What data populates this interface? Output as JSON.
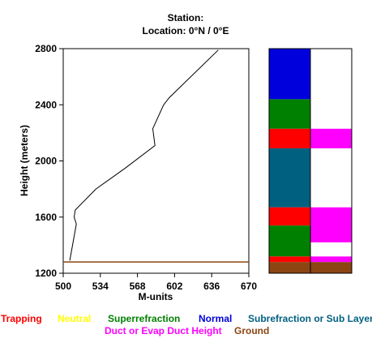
{
  "header": {
    "station_line": "Station:",
    "location_line": "Location:   0°N /   0°E"
  },
  "chart_data": {
    "type": "line",
    "xlabel": "M-units",
    "ylabel": "Height (meters)",
    "xlim": [
      500,
      670
    ],
    "ylim": [
      1200,
      2800
    ],
    "xticks": [
      "500",
      "534",
      "568",
      "602",
      "636",
      "670"
    ],
    "yticks": [
      "1200",
      "1600",
      "2000",
      "2400",
      "2800"
    ],
    "series": [
      {
        "points": [
          [
            506,
            1290
          ],
          [
            512,
            1550
          ],
          [
            510,
            1600
          ],
          [
            511,
            1650
          ],
          [
            530,
            1800
          ],
          [
            557,
            1950
          ],
          [
            584,
            2110
          ],
          [
            582,
            2230
          ],
          [
            592,
            2400
          ],
          [
            597,
            2450
          ],
          [
            642,
            2790
          ]
        ]
      }
    ],
    "ground_height": 1280,
    "layer_columns": {
      "left": [
        {
          "from": 1200,
          "to": 1280,
          "color": "#8B4513"
        },
        {
          "from": 1280,
          "to": 1320,
          "color": "#ff0000"
        },
        {
          "from": 1320,
          "to": 1540,
          "color": "#008000"
        },
        {
          "from": 1540,
          "to": 1670,
          "color": "#ff0000"
        },
        {
          "from": 1670,
          "to": 2090,
          "color": "#006080"
        },
        {
          "from": 2090,
          "to": 2230,
          "color": "#ff0000"
        },
        {
          "from": 2230,
          "to": 2440,
          "color": "#008000"
        },
        {
          "from": 2440,
          "to": 2800,
          "color": "#0000dd"
        }
      ],
      "right": [
        {
          "from": 1200,
          "to": 1280,
          "color": "#8B4513"
        },
        {
          "from": 1280,
          "to": 1320,
          "color": "#ff00ff"
        },
        {
          "from": 1320,
          "to": 1420,
          "color": "#ffffff"
        },
        {
          "from": 1420,
          "to": 1670,
          "color": "#ff00ff"
        },
        {
          "from": 1670,
          "to": 2090,
          "color": "#ffffff"
        },
        {
          "from": 2090,
          "to": 2230,
          "color": "#ff00ff"
        },
        {
          "from": 2230,
          "to": 2800,
          "color": "#ffffff"
        }
      ]
    }
  },
  "legend": {
    "row1": [
      {
        "label": "Trapping",
        "color": "#ff0000"
      },
      {
        "label": "Neutral",
        "color": "#ffff00"
      },
      {
        "label": "Superrefraction",
        "color": "#008000"
      },
      {
        "label": "Normal",
        "color": "#0000dd"
      },
      {
        "label": "Subrefraction or Sub Layer",
        "color": "#006080"
      }
    ],
    "row2": [
      {
        "label": "Duct or Evap Duct Height",
        "color": "#ff00ff"
      },
      {
        "label": "Ground",
        "color": "#8B4513"
      }
    ]
  }
}
